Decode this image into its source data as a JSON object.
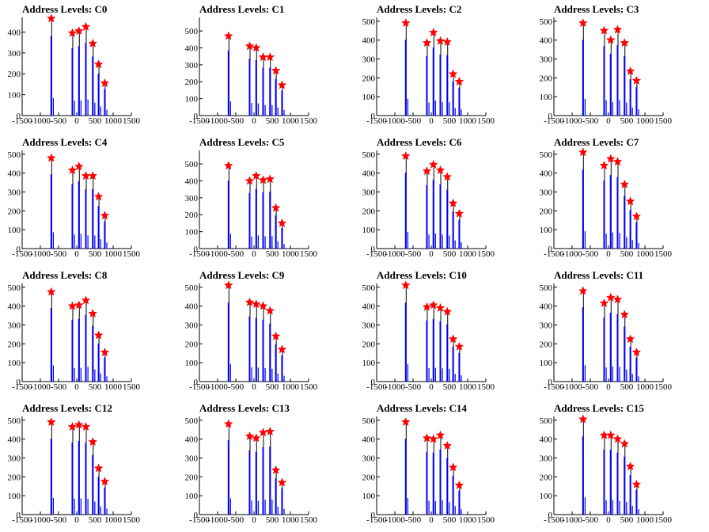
{
  "chart_data": [
    {
      "type": "bar",
      "title": "Address Levels: C0",
      "xlim": [
        -1500,
        1500
      ],
      "ylim": [
        0,
        470
      ],
      "xticks": [
        "-1500",
        "-1000",
        "-500",
        "0",
        "500",
        "1000",
        "1500"
      ],
      "yticks": [
        "0",
        "100",
        "200",
        "300",
        "400"
      ],
      "peaks": [
        {
          "x": -700,
          "y": 465
        },
        {
          "x": -120,
          "y": 395
        },
        {
          "x": 60,
          "y": 405
        },
        {
          "x": 250,
          "y": 425
        },
        {
          "x": 440,
          "y": 345
        },
        {
          "x": 600,
          "y": 245
        },
        {
          "x": 770,
          "y": 155
        }
      ]
    },
    {
      "type": "bar",
      "title": "Address Levels: C1",
      "xlim": [
        -1500,
        1500
      ],
      "ylim": [
        0,
        580
      ],
      "xticks": [
        "-1500",
        "-1000",
        "-500",
        "0",
        "500",
        "1000",
        "1500"
      ],
      "yticks": [
        "0",
        "100",
        "200",
        "300",
        "400",
        "500"
      ],
      "peaks": [
        {
          "x": -700,
          "y": 470
        },
        {
          "x": -120,
          "y": 410
        },
        {
          "x": 60,
          "y": 400
        },
        {
          "x": 250,
          "y": 345
        },
        {
          "x": 440,
          "y": 345
        },
        {
          "x": 600,
          "y": 265
        },
        {
          "x": 770,
          "y": 180
        }
      ]
    },
    {
      "type": "bar",
      "title": "Address Levels: C2",
      "xlim": [
        -1500,
        1500
      ],
      "ylim": [
        0,
        520
      ],
      "xticks": [
        "-1500",
        "-1000",
        "-500",
        "0",
        "500",
        "1000",
        "1500"
      ],
      "yticks": [
        "0",
        "100",
        "200",
        "300",
        "400",
        "500"
      ],
      "peaks": [
        {
          "x": -700,
          "y": 490
        },
        {
          "x": -120,
          "y": 385
        },
        {
          "x": 60,
          "y": 440
        },
        {
          "x": 250,
          "y": 395
        },
        {
          "x": 440,
          "y": 390
        },
        {
          "x": 600,
          "y": 220
        },
        {
          "x": 770,
          "y": 180
        }
      ]
    },
    {
      "type": "bar",
      "title": "Address Levels: C3",
      "xlim": [
        -1500,
        1500
      ],
      "ylim": [
        0,
        520
      ],
      "xticks": [
        "-1500",
        "-1000",
        "-500",
        "0",
        "500",
        "1000",
        "1500"
      ],
      "yticks": [
        "0",
        "100",
        "200",
        "300",
        "400",
        "500"
      ],
      "peaks": [
        {
          "x": -700,
          "y": 490
        },
        {
          "x": -120,
          "y": 450
        },
        {
          "x": 60,
          "y": 400
        },
        {
          "x": 250,
          "y": 455
        },
        {
          "x": 440,
          "y": 385
        },
        {
          "x": 600,
          "y": 235
        },
        {
          "x": 770,
          "y": 185
        }
      ]
    },
    {
      "type": "bar",
      "title": "Address Levels: C4",
      "xlim": [
        -1500,
        1500
      ],
      "ylim": [
        0,
        520
      ],
      "xticks": [
        "-1500",
        "-1000",
        "-500",
        "0",
        "500",
        "1000",
        "1500"
      ],
      "yticks": [
        "0",
        "100",
        "200",
        "300",
        "400",
        "500"
      ],
      "peaks": [
        {
          "x": -700,
          "y": 480
        },
        {
          "x": -120,
          "y": 415
        },
        {
          "x": 60,
          "y": 435
        },
        {
          "x": 250,
          "y": 385
        },
        {
          "x": 440,
          "y": 385
        },
        {
          "x": 600,
          "y": 275
        },
        {
          "x": 770,
          "y": 175
        }
      ]
    },
    {
      "type": "bar",
      "title": "Address Levels: C5",
      "xlim": [
        -1500,
        1500
      ],
      "ylim": [
        0,
        580
      ],
      "xticks": [
        "-1500",
        "-1000",
        "-500",
        "0",
        "500",
        "1000",
        "1500"
      ],
      "yticks": [
        "0",
        "100",
        "200",
        "300",
        "400",
        "500"
      ],
      "peaks": [
        {
          "x": -700,
          "y": 490
        },
        {
          "x": -120,
          "y": 400
        },
        {
          "x": 60,
          "y": 430
        },
        {
          "x": 250,
          "y": 405
        },
        {
          "x": 440,
          "y": 410
        },
        {
          "x": 600,
          "y": 240
        },
        {
          "x": 770,
          "y": 150
        }
      ]
    },
    {
      "type": "bar",
      "title": "Address Levels: C6",
      "xlim": [
        -1500,
        1500
      ],
      "ylim": [
        0,
        520
      ],
      "xticks": [
        "-1500",
        "-1000",
        "-500",
        "0",
        "500",
        "1000",
        "1500"
      ],
      "yticks": [
        "0",
        "100",
        "200",
        "300",
        "400",
        "500"
      ],
      "peaks": [
        {
          "x": -700,
          "y": 490
        },
        {
          "x": -120,
          "y": 410
        },
        {
          "x": 60,
          "y": 445
        },
        {
          "x": 250,
          "y": 415
        },
        {
          "x": 440,
          "y": 380
        },
        {
          "x": 600,
          "y": 240
        },
        {
          "x": 770,
          "y": 185
        }
      ]
    },
    {
      "type": "bar",
      "title": "Address Levels: C7",
      "xlim": [
        -1500,
        1500
      ],
      "ylim": [
        0,
        520
      ],
      "xticks": [
        "-1500",
        "-1000",
        "-500",
        "0",
        "500",
        "1000",
        "1500"
      ],
      "yticks": [
        "0",
        "100",
        "200",
        "300",
        "400",
        "500"
      ],
      "peaks": [
        {
          "x": -700,
          "y": 510
        },
        {
          "x": -120,
          "y": 440
        },
        {
          "x": 60,
          "y": 475
        },
        {
          "x": 250,
          "y": 460
        },
        {
          "x": 440,
          "y": 340
        },
        {
          "x": 600,
          "y": 250
        },
        {
          "x": 770,
          "y": 170
        }
      ]
    },
    {
      "type": "bar",
      "title": "Address Levels: C8",
      "xlim": [
        -1500,
        1500
      ],
      "ylim": [
        0,
        520
      ],
      "xticks": [
        "-1500",
        "-1000",
        "-500",
        "0",
        "500",
        "1000",
        "1500"
      ],
      "yticks": [
        "0",
        "100",
        "200",
        "300",
        "400",
        "500"
      ],
      "peaks": [
        {
          "x": -700,
          "y": 475
        },
        {
          "x": -120,
          "y": 400
        },
        {
          "x": 60,
          "y": 405
        },
        {
          "x": 250,
          "y": 430
        },
        {
          "x": 440,
          "y": 360
        },
        {
          "x": 600,
          "y": 245
        },
        {
          "x": 770,
          "y": 155
        }
      ]
    },
    {
      "type": "bar",
      "title": "Address Levels: C9",
      "xlim": [
        -1500,
        1500
      ],
      "ylim": [
        0,
        520
      ],
      "xticks": [
        "-1500",
        "-1000",
        "-500",
        "0",
        "500",
        "1000",
        "1500"
      ],
      "yticks": [
        "0",
        "100",
        "200",
        "300",
        "400",
        "500"
      ],
      "peaks": [
        {
          "x": -700,
          "y": 510
        },
        {
          "x": -120,
          "y": 420
        },
        {
          "x": 60,
          "y": 410
        },
        {
          "x": 250,
          "y": 400
        },
        {
          "x": 440,
          "y": 375
        },
        {
          "x": 600,
          "y": 240
        },
        {
          "x": 770,
          "y": 170
        }
      ]
    },
    {
      "type": "bar",
      "title": "Address Levels: C10",
      "xlim": [
        -1500,
        1500
      ],
      "ylim": [
        0,
        520
      ],
      "xticks": [
        "-1500",
        "-1000",
        "-500",
        "0",
        "500",
        "1000",
        "1500"
      ],
      "yticks": [
        "0",
        "100",
        "200",
        "300",
        "400",
        "500"
      ],
      "peaks": [
        {
          "x": -700,
          "y": 510
        },
        {
          "x": -120,
          "y": 395
        },
        {
          "x": 60,
          "y": 405
        },
        {
          "x": 250,
          "y": 390
        },
        {
          "x": 440,
          "y": 370
        },
        {
          "x": 600,
          "y": 225
        },
        {
          "x": 770,
          "y": 185
        }
      ]
    },
    {
      "type": "bar",
      "title": "Address Levels: C11",
      "xlim": [
        -1500,
        1500
      ],
      "ylim": [
        0,
        520
      ],
      "xticks": [
        "-1500",
        "-1000",
        "-500",
        "0",
        "500",
        "1000",
        "1500"
      ],
      "yticks": [
        "0",
        "100",
        "200",
        "300",
        "400",
        "500"
      ],
      "peaks": [
        {
          "x": -700,
          "y": 480
        },
        {
          "x": -120,
          "y": 415
        },
        {
          "x": 60,
          "y": 445
        },
        {
          "x": 250,
          "y": 435
        },
        {
          "x": 440,
          "y": 355
        },
        {
          "x": 600,
          "y": 225
        },
        {
          "x": 770,
          "y": 155
        }
      ]
    },
    {
      "type": "bar",
      "title": "Address Levels: C12",
      "xlim": [
        -1500,
        1500
      ],
      "ylim": [
        0,
        520
      ],
      "xticks": [
        "-1500",
        "-1000",
        "-500",
        "0",
        "500",
        "1000",
        "1500"
      ],
      "yticks": [
        "0",
        "100",
        "200",
        "300",
        "400",
        "500"
      ],
      "peaks": [
        {
          "x": -700,
          "y": 490
        },
        {
          "x": -120,
          "y": 465
        },
        {
          "x": 60,
          "y": 475
        },
        {
          "x": 250,
          "y": 465
        },
        {
          "x": 440,
          "y": 385
        },
        {
          "x": 600,
          "y": 245
        },
        {
          "x": 770,
          "y": 175
        }
      ]
    },
    {
      "type": "bar",
      "title": "Address Levels: C13",
      "xlim": [
        -1500,
        1500
      ],
      "ylim": [
        0,
        520
      ],
      "xticks": [
        "-1500",
        "-1000",
        "-500",
        "0",
        "500",
        "1000",
        "1500"
      ],
      "yticks": [
        "0",
        "100",
        "200",
        "300",
        "400",
        "500"
      ],
      "peaks": [
        {
          "x": -700,
          "y": 480
        },
        {
          "x": -120,
          "y": 415
        },
        {
          "x": 60,
          "y": 405
        },
        {
          "x": 250,
          "y": 435
        },
        {
          "x": 440,
          "y": 440
        },
        {
          "x": 600,
          "y": 235
        },
        {
          "x": 770,
          "y": 170
        }
      ]
    },
    {
      "type": "bar",
      "title": "Address Levels: C14",
      "xlim": [
        -1500,
        1500
      ],
      "ylim": [
        0,
        520
      ],
      "xticks": [
        "-1500",
        "-1000",
        "-500",
        "0",
        "500",
        "1000",
        "1500"
      ],
      "yticks": [
        "0",
        "100",
        "200",
        "300",
        "400",
        "500"
      ],
      "peaks": [
        {
          "x": -700,
          "y": 490
        },
        {
          "x": -120,
          "y": 405
        },
        {
          "x": 60,
          "y": 400
        },
        {
          "x": 250,
          "y": 420
        },
        {
          "x": 440,
          "y": 365
        },
        {
          "x": 600,
          "y": 250
        },
        {
          "x": 770,
          "y": 155
        }
      ]
    },
    {
      "type": "bar",
      "title": "Address Levels: C15",
      "xlim": [
        -1500,
        1500
      ],
      "ylim": [
        0,
        520
      ],
      "xticks": [
        "-1500",
        "-1000",
        "-500",
        "0",
        "500",
        "1000",
        "1500"
      ],
      "yticks": [
        "0",
        "100",
        "200",
        "300",
        "400",
        "500"
      ],
      "peaks": [
        {
          "x": -700,
          "y": 505
        },
        {
          "x": -120,
          "y": 420
        },
        {
          "x": 60,
          "y": 420
        },
        {
          "x": 250,
          "y": 400
        },
        {
          "x": 440,
          "y": 375
        },
        {
          "x": 600,
          "y": 255
        },
        {
          "x": 770,
          "y": 160
        }
      ]
    }
  ],
  "colors": {
    "bar": "#0000ff",
    "outline": "#000000",
    "marker": "#ff0000"
  },
  "marker_icon": "red-star-marker"
}
